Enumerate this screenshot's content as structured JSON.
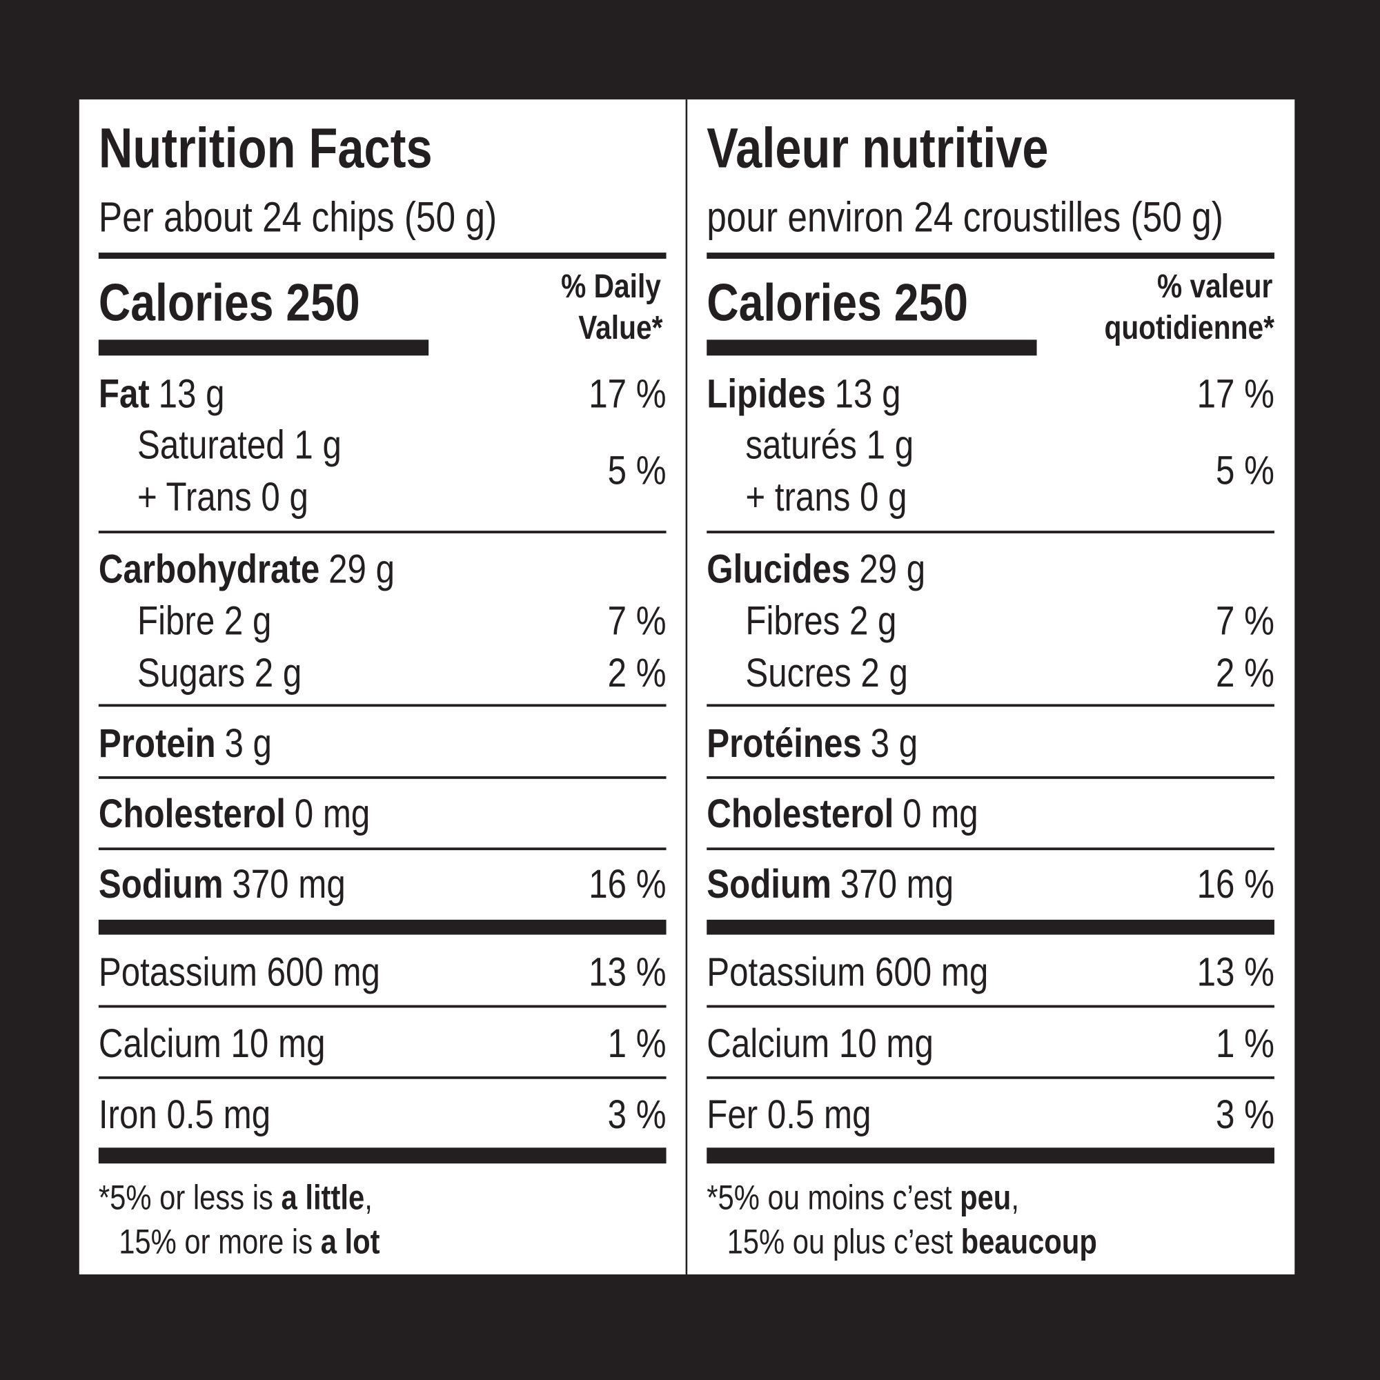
{
  "panels": [
    {
      "title": "Nutrition Facts",
      "serving": "Per about 24 chips (50 g)",
      "calories": "Calories 250",
      "dv_heading": [
        "% Daily",
        "Value*"
      ],
      "fat": {
        "label": "Fat",
        "amount": "13 g",
        "dv": "17 %"
      },
      "saturated_trans": {
        "lines": [
          "Saturated 1 g",
          "+ Trans 0 g"
        ],
        "dv": "5 %"
      },
      "carbohydrate": {
        "label": "Carbohydrate",
        "amount": "29 g"
      },
      "fibre": {
        "label": "Fibre 2 g",
        "dv": "7 %"
      },
      "sugars": {
        "label": "Sugars 2 g",
        "dv": "2 %"
      },
      "protein": {
        "label": "Protein",
        "amount": "3 g"
      },
      "cholesterol": {
        "label": "Cholesterol",
        "amount": "0 mg"
      },
      "sodium": {
        "label": "Sodium",
        "amount": "370 mg",
        "dv": "16 %"
      },
      "potassium": {
        "label": "Potassium 600 mg",
        "dv": "13 %"
      },
      "calcium": {
        "label": "Calcium 10 mg",
        "dv": "1 %"
      },
      "iron": {
        "label": "Iron 0.5 mg",
        "dv": "3 %"
      },
      "footnote": [
        [
          "*5% or less is ",
          {
            "text": "a little",
            "bold": true
          },
          ","
        ],
        [
          "15% or more is ",
          {
            "text": "a lot",
            "bold": true
          }
        ]
      ]
    },
    {
      "title": "Valeur nutritive",
      "serving": "pour environ 24 croustilles (50 g)",
      "calories": "Calories 250",
      "dv_heading": [
        "% valeur",
        "quotidienne*"
      ],
      "fat": {
        "label": "Lipides",
        "amount": "13 g",
        "dv": "17 %"
      },
      "saturated_trans": {
        "lines": [
          "saturés 1 g",
          "+ trans 0 g"
        ],
        "dv": "5 %"
      },
      "carbohydrate": {
        "label": "Glucides",
        "amount": "29 g"
      },
      "fibre": {
        "label": "Fibres 2 g",
        "dv": "7 %"
      },
      "sugars": {
        "label": "Sucres 2 g",
        "dv": "2 %"
      },
      "protein": {
        "label": "Protéines",
        "amount": "3 g"
      },
      "cholesterol": {
        "label": "Cholesterol",
        "amount": "0 mg"
      },
      "sodium": {
        "label": "Sodium",
        "amount": "370 mg",
        "dv": "16 %"
      },
      "potassium": {
        "label": "Potassium 600 mg",
        "dv": "13 %"
      },
      "calcium": {
        "label": "Calcium 10 mg",
        "dv": "1 %"
      },
      "iron": {
        "label": "Fer 0.5 mg",
        "dv": "3 %"
      },
      "footnote": [
        [
          "*5% ou moins c’est ",
          {
            "text": "peu",
            "bold": true
          },
          ","
        ],
        [
          "15% ou plus c’est ",
          {
            "text": "beaucoup",
            "bold": true
          }
        ]
      ]
    }
  ]
}
